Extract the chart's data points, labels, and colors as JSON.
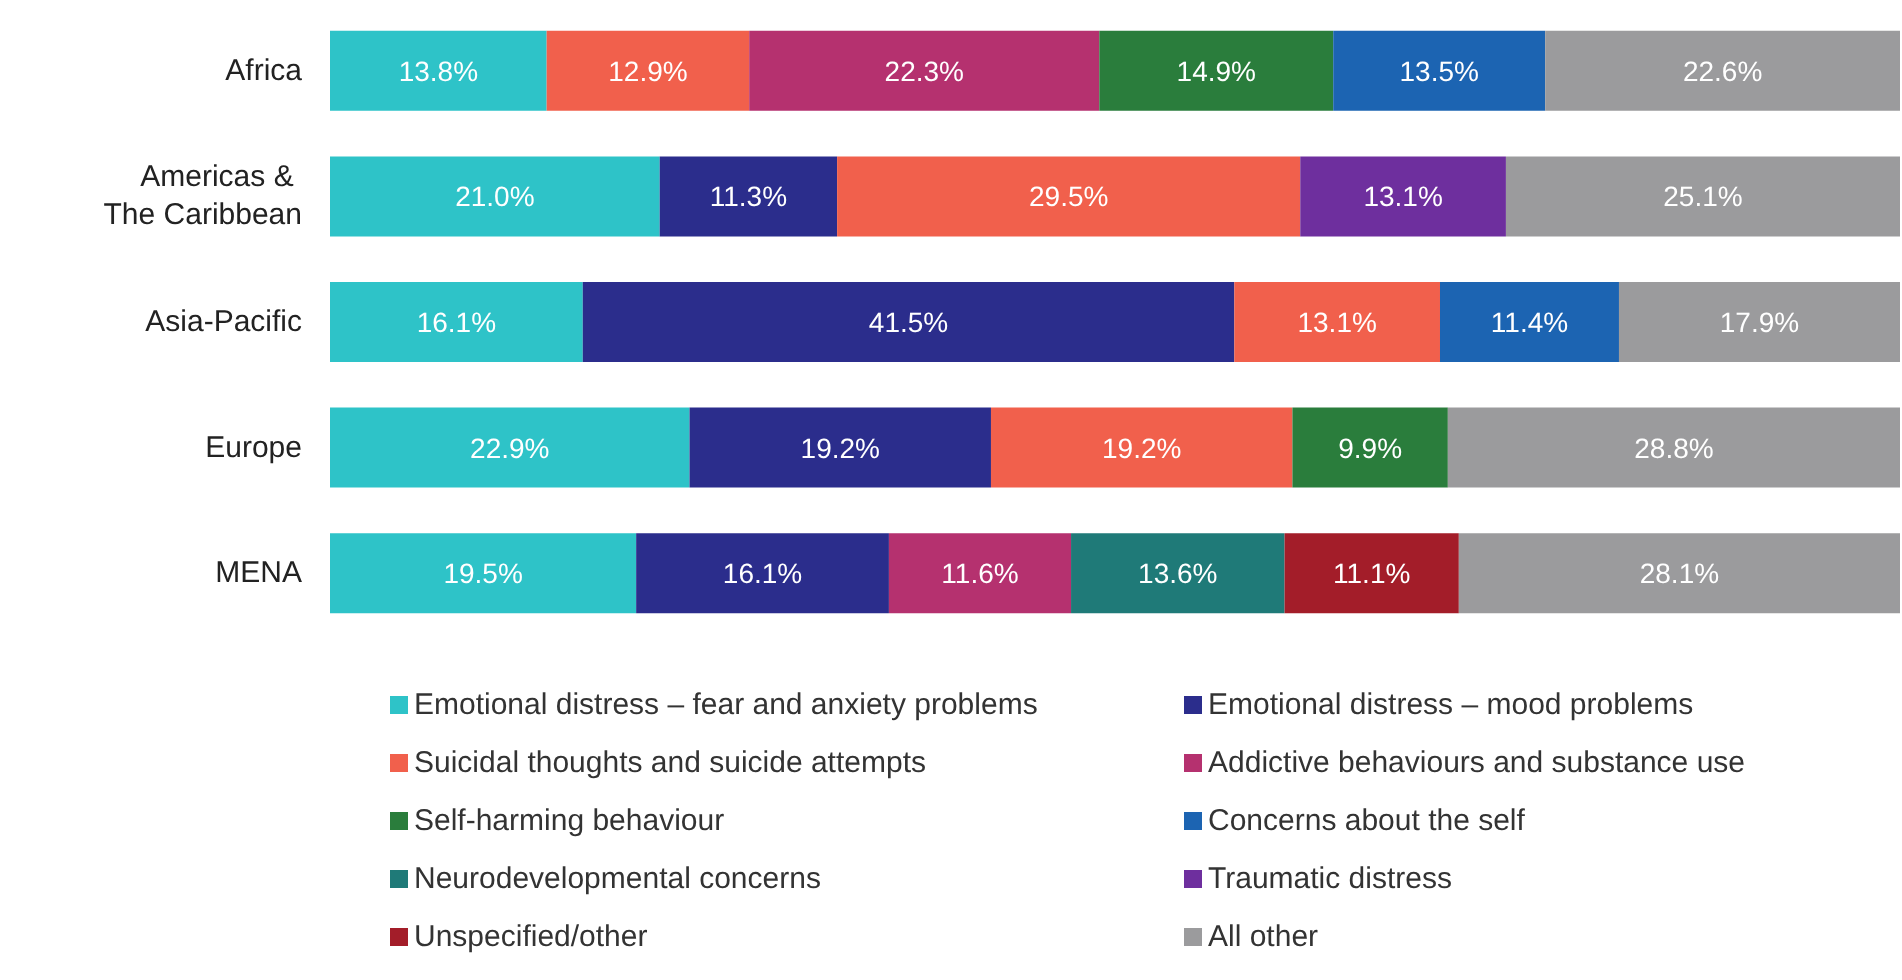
{
  "chart_data": {
    "type": "bar",
    "orientation": "horizontal",
    "stacked": true,
    "tick_labels": "y",
    "legend": "bottom",
    "xlim": [
      0,
      100
    ],
    "categories": [
      "Africa",
      "Americas & The Caribbean",
      "Asia-Pacific",
      "Europe",
      "MENA"
    ],
    "series": [
      {
        "name": "Emotional distress – fear and anxiety problems",
        "color": "#2ec3c8",
        "values": [
          13.8,
          21.0,
          16.1,
          22.9,
          19.5
        ],
        "value_labels": [
          "13.8%",
          "21.0%",
          "16.1%",
          "22.9%",
          "19.5%"
        ]
      },
      {
        "name": "Emotional distress – mood problems",
        "color": "#2b2d8c",
        "values": [
          null,
          11.3,
          41.5,
          19.2,
          16.1
        ],
        "value_labels": [
          null,
          "11.3%",
          "41.5%",
          "19.2%",
          "16.1%"
        ]
      },
      {
        "name": "Suicidal thoughts and suicide attempts",
        "color": "#f1604c",
        "values": [
          12.9,
          29.5,
          13.1,
          19.2,
          null
        ],
        "value_labels": [
          "12.9%",
          "29.5%",
          "13.1%",
          "19.2%",
          null
        ]
      },
      {
        "name": "Addictive behaviours and substance use",
        "color": "#b5316f",
        "values": [
          22.3,
          null,
          null,
          null,
          11.6
        ],
        "value_labels": [
          "22.3%",
          null,
          null,
          null,
          "11.6%"
        ]
      },
      {
        "name": "Self-harming behaviour",
        "color": "#2a7d3c",
        "values": [
          14.9,
          null,
          null,
          9.9,
          null
        ],
        "value_labels": [
          "14.9%",
          null,
          null,
          "9.9%",
          null
        ]
      },
      {
        "name": "Concerns about the self",
        "color": "#1c64b2",
        "values": [
          13.5,
          null,
          11.4,
          null,
          null
        ],
        "value_labels": [
          "13.5%",
          null,
          "11.4%",
          null,
          null
        ]
      },
      {
        "name": "Neurodevelopmental concerns",
        "color": "#1f7a78",
        "values": [
          null,
          null,
          null,
          null,
          13.6
        ],
        "value_labels": [
          null,
          null,
          null,
          null,
          "13.6%"
        ]
      },
      {
        "name": "Traumatic distress",
        "color": "#6e2f9e",
        "values": [
          null,
          13.1,
          null,
          null,
          null
        ],
        "value_labels": [
          null,
          "13.1%",
          null,
          null,
          null
        ]
      },
      {
        "name": "Unspecified/other",
        "color": "#a31d29",
        "values": [
          null,
          null,
          null,
          null,
          11.1
        ],
        "value_labels": [
          null,
          null,
          null,
          null,
          "11.1%"
        ]
      },
      {
        "name": "All other",
        "color": "#9b9b9d",
        "values": [
          22.6,
          25.1,
          17.9,
          28.8,
          28.1
        ],
        "value_labels": [
          "22.6%",
          "25.1%",
          "17.9%",
          "28.8%",
          "28.1%"
        ]
      }
    ]
  }
}
